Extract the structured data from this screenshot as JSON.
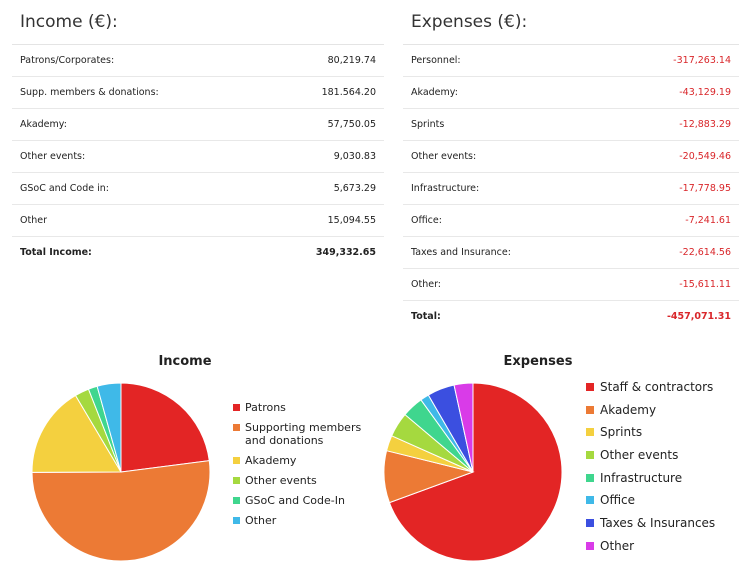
{
  "income": {
    "heading": "Income (€):",
    "rows": [
      {
        "label": "Patrons/Corporates:",
        "value": "80,219.74"
      },
      {
        "label": "Supp. members & donations:",
        "value": "181.564.20"
      },
      {
        "label": "Akademy:",
        "value": "57,750.05"
      },
      {
        "label": "Other events:",
        "value": "9,030.83"
      },
      {
        "label": "GSoC and Code in:",
        "value": "5,673.29"
      },
      {
        "label": "Other",
        "value": "15,094.55"
      }
    ],
    "total": {
      "label": "Total Income:",
      "value": "349,332.65"
    }
  },
  "expenses": {
    "heading": "Expenses (€):",
    "rows": [
      {
        "label": "Personnel:",
        "value": "-317,263.14"
      },
      {
        "label": "Akademy:",
        "value": "-43,129.19"
      },
      {
        "label": "Sprints",
        "value": "-12,883.29"
      },
      {
        "label": "Other events:",
        "value": "-20,549.46"
      },
      {
        "label": "Infrastructure:",
        "value": "-17,778.95"
      },
      {
        "label": "Office:",
        "value": "-7,241.61"
      },
      {
        "label": "Taxes and Insurance:",
        "value": "-22,614.56"
      },
      {
        "label": "Other:",
        "value": "-15,611.11"
      }
    ],
    "total": {
      "label": "Total:",
      "value": "-457,071.31"
    }
  },
  "colors": {
    "red": "#e32525",
    "orange": "#ec7a35",
    "yellow": "#f4d03f",
    "green": "#a5d93f",
    "teal": "#3fd68e",
    "cyan": "#3fb9e8",
    "blue": "#3b4fe0",
    "magenta": "#d93be8"
  },
  "chart_data": [
    {
      "type": "pie",
      "title": "Income",
      "legend": "right",
      "series": [
        {
          "name": "Patrons",
          "value": 80219.74,
          "color": "#e32525"
        },
        {
          "name": "Supporting members and donations",
          "value": 181564.2,
          "color": "#ec7a35"
        },
        {
          "name": "Akademy",
          "value": 57750.05,
          "color": "#f4d03f"
        },
        {
          "name": "Other events",
          "value": 9030.83,
          "color": "#a5d93f"
        },
        {
          "name": "GSoC and Code-In",
          "value": 5673.29,
          "color": "#3fd68e"
        },
        {
          "name": "Other",
          "value": 15094.55,
          "color": "#3fb9e8"
        }
      ]
    },
    {
      "type": "pie",
      "title": "Expenses",
      "legend": "right",
      "series": [
        {
          "name": "Staff & contractors",
          "value": 317263.14,
          "color": "#e32525"
        },
        {
          "name": "Akademy",
          "value": 43129.19,
          "color": "#ec7a35"
        },
        {
          "name": "Sprints",
          "value": 12883.29,
          "color": "#f4d03f"
        },
        {
          "name": "Other events",
          "value": 20549.46,
          "color": "#a5d93f"
        },
        {
          "name": "Infrastructure",
          "value": 17778.95,
          "color": "#3fd68e"
        },
        {
          "name": "Office",
          "value": 7241.61,
          "color": "#3fb9e8"
        },
        {
          "name": "Taxes & Insurances",
          "value": 22614.56,
          "color": "#3b4fe0"
        },
        {
          "name": "Other",
          "value": 15611.11,
          "color": "#d93be8"
        }
      ]
    }
  ]
}
